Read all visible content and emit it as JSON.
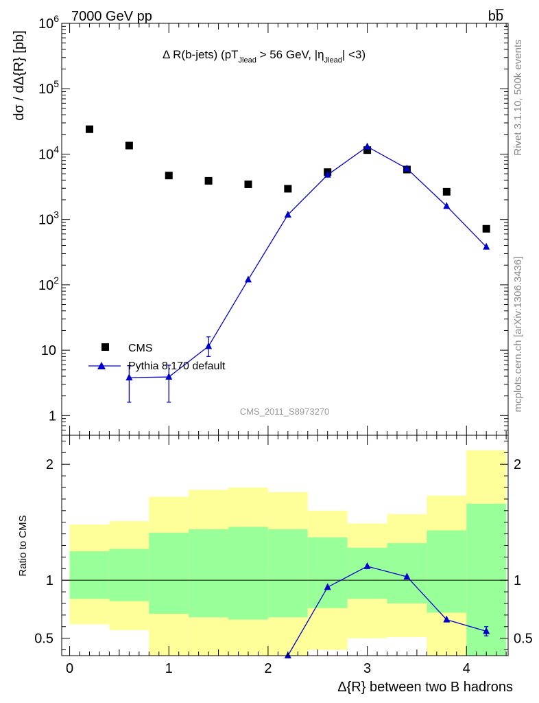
{
  "header": {
    "beam": "7000 GeV pp",
    "process": "bb̅",
    "side_top": "Rivet 3.1.10,  500k events",
    "side_bottom": "mcplots.cern.ch [arXiv:1306.3436]"
  },
  "title": {
    "part1": "Δ R(b-jets) (pT",
    "sub1": "Jlead",
    "part2": " >  56 GeV, |η",
    "sub2": "Jlead",
    "part3": "| <3)"
  },
  "watermark": "CMS_2011_S8973270",
  "ylabel_top": "dσ / dΔ{R} [pb]",
  "ylabel_bottom": "Ratio to CMS",
  "xlabel": "Δ{R} between two B hadrons",
  "legend": {
    "cms": "CMS",
    "pythia": "Pythia 8.170 default"
  },
  "colors": {
    "data": "#000000",
    "mc": "#0000cc",
    "band_inner": "#99ff99",
    "band_outer": "#ffff99"
  },
  "chart_data": [
    {
      "type": "scatter",
      "panel": "main",
      "yscale": "log",
      "ylim": [
        0.5,
        1000000
      ],
      "xlim": [
        -0.08,
        4.42
      ],
      "yticks": [
        "1",
        "10",
        "10^2",
        "10^3",
        "10^4",
        "10^5",
        "10^6"
      ],
      "series": [
        {
          "name": "CMS",
          "x": [
            0.2,
            0.6,
            1.0,
            1.4,
            1.8,
            2.2,
            2.6,
            3.0,
            3.4,
            3.8,
            4.2
          ],
          "y": [
            24000,
            13500,
            4700,
            3900,
            3450,
            2950,
            5300,
            11500,
            5800,
            2650,
            720
          ]
        },
        {
          "name": "Pythia 8.170 default",
          "x": [
            0.6,
            1.0,
            1.4,
            1.8,
            2.2,
            2.6,
            3.0,
            3.4,
            3.8,
            4.2
          ],
          "y": [
            3.8,
            3.9,
            11.5,
            120,
            1180,
            4800,
            13000,
            6000,
            1600,
            380
          ],
          "yerr_low": [
            2.2,
            2.3,
            3.5,
            0,
            0,
            0,
            0,
            0,
            0,
            0
          ],
          "yerr_high": [
            2.0,
            2.0,
            4.5,
            0,
            0,
            0,
            0,
            0,
            0,
            0
          ]
        }
      ]
    },
    {
      "type": "bar",
      "panel": "ratio",
      "ylabel": "Ratio to CMS",
      "xlabel": "Δ{R} between two B hadrons",
      "ylim": [
        0.35,
        2.25
      ],
      "xticks": [
        "0",
        "1",
        "2",
        "3",
        "4"
      ],
      "yticks": [
        "0.5",
        "1",
        "2"
      ],
      "bins": [
        [
          0.0,
          0.4
        ],
        [
          0.4,
          0.8
        ],
        [
          0.8,
          1.2
        ],
        [
          1.2,
          1.6
        ],
        [
          1.6,
          2.0
        ],
        [
          2.0,
          2.4
        ],
        [
          2.4,
          2.8
        ],
        [
          2.8,
          3.2
        ],
        [
          3.2,
          3.6
        ],
        [
          3.6,
          4.0
        ],
        [
          4.0,
          4.4
        ]
      ],
      "band_outer_low": [
        0.62,
        0.57,
        0.35,
        0.35,
        0.35,
        0.35,
        0.4,
        0.5,
        0.51,
        0.35,
        0.35
      ],
      "band_outer_high": [
        1.48,
        1.51,
        1.72,
        1.78,
        1.8,
        1.76,
        1.6,
        1.49,
        1.57,
        1.73,
        2.12
      ],
      "band_inner_low": [
        0.84,
        0.82,
        0.71,
        0.68,
        0.66,
        0.68,
        0.76,
        0.84,
        0.8,
        0.72,
        0.35
      ],
      "band_inner_high": [
        1.25,
        1.27,
        1.41,
        1.44,
        1.46,
        1.44,
        1.37,
        1.28,
        1.32,
        1.43,
        1.66
      ],
      "series": [
        {
          "name": "Pythia 8.170 default",
          "x": [
            2.2,
            2.6,
            3.0,
            3.4,
            3.8,
            4.2
          ],
          "y": [
            0.34,
            0.94,
            1.12,
            1.03,
            0.66,
            0.56
          ],
          "yerr": [
            0,
            0,
            0,
            0,
            0,
            0.04
          ]
        }
      ]
    }
  ]
}
